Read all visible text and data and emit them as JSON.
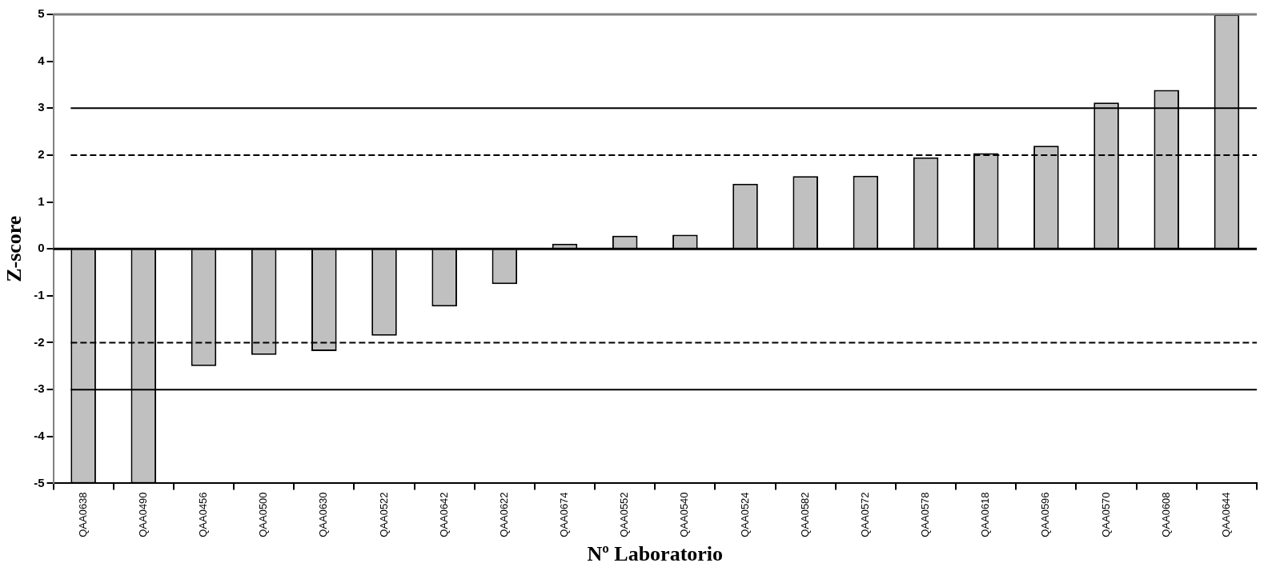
{
  "chart_data": {
    "type": "bar",
    "xlabel": "Nº Laboratorio",
    "ylabel": "Z-score",
    "categories": [
      "QAA0638",
      "QAA0490",
      "QAA0456",
      "QAA0500",
      "QAA0630",
      "QAA0522",
      "QAA0642",
      "QAA0622",
      "QAA0674",
      "QAA0552",
      "QAA0540",
      "QAA0524",
      "QAA0582",
      "QAA0572",
      "QAA0578",
      "QAA0618",
      "QAA0596",
      "QAA0570",
      "QAA0608",
      "QAA0644"
    ],
    "values": [
      -5,
      -5,
      -2.5,
      -2.26,
      -2.18,
      -1.85,
      -1.23,
      -0.75,
      0.11,
      0.28,
      0.3,
      1.39,
      1.55,
      1.56,
      1.95,
      2.04,
      2.2,
      3.12,
      3.39,
      5
    ],
    "color": "#c0c0c0",
    "ylim": [
      -5,
      5
    ],
    "yticks": [
      -5,
      -4,
      -3,
      -2,
      -1,
      0,
      1,
      2,
      3,
      4,
      5
    ],
    "ref_lines": [
      {
        "axis": "y",
        "value": 3,
        "line_style": "solid",
        "color": "#000000"
      },
      {
        "axis": "y",
        "value": 2,
        "line_style": "dashed",
        "color": "#000000"
      },
      {
        "axis": "y",
        "value": -2,
        "line_style": "dashed",
        "color": "#000000"
      },
      {
        "axis": "y",
        "value": -3,
        "line_style": "solid",
        "color": "#000000"
      }
    ]
  }
}
